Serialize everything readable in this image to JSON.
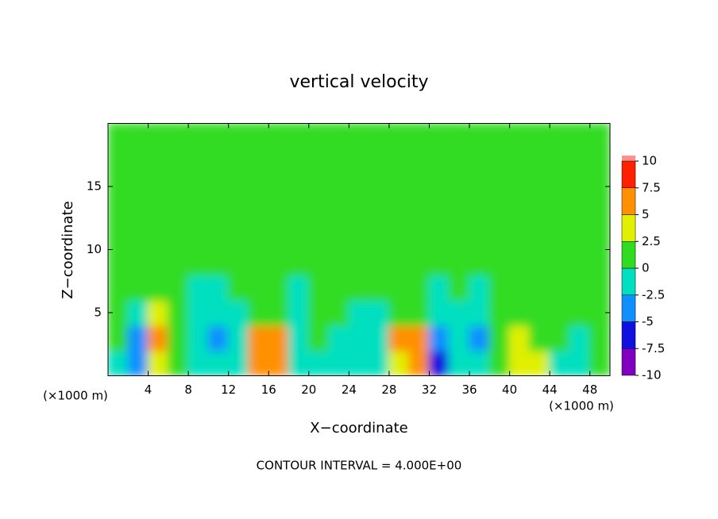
{
  "chart_data": {
    "type": "heatmap",
    "title": "vertical velocity",
    "xlabel": "X−coordinate",
    "ylabel": "Z−coordinate",
    "x_unit": "(×1000 m)",
    "x_unit_right": "(×1000 m)",
    "annotation": "CONTOUR INTERVAL = 4.000E+00",
    "xlim": [
      0,
      50
    ],
    "ylim": [
      0,
      20
    ],
    "xticks": [
      4,
      8,
      12,
      16,
      20,
      24,
      28,
      32,
      36,
      40,
      44,
      48
    ],
    "yticks": [
      5,
      10,
      15
    ],
    "x": [
      1,
      3,
      5,
      7,
      9,
      11,
      13,
      15,
      17,
      19,
      21,
      23,
      25,
      27,
      29,
      31,
      33,
      35,
      37,
      39,
      41,
      43,
      45,
      47,
      49
    ],
    "y": [
      1,
      3,
      5,
      7,
      9,
      11,
      13,
      15,
      17,
      19
    ],
    "values": [
      [
        -2,
        -5,
        3,
        2,
        -1,
        -2,
        -1,
        6,
        7,
        -1,
        -2,
        -1,
        -1.5,
        -2,
        4,
        7,
        -6,
        -2,
        -1.5,
        1,
        3,
        3,
        -1,
        -1.5,
        1
      ],
      [
        0,
        -3,
        5,
        1,
        -1,
        -3,
        -2,
        7,
        6,
        -1,
        0,
        -1,
        -1.5,
        -2,
        5,
        6,
        -5,
        -1,
        -3,
        1,
        4,
        2,
        0.5,
        -1,
        1.5
      ],
      [
        0.5,
        -1,
        4,
        0,
        -1,
        -1.5,
        -1,
        2,
        2,
        -1,
        1,
        0,
        -0.5,
        -1,
        1,
        2,
        -2,
        -0.5,
        -2,
        0,
        1,
        1,
        1,
        0,
        1
      ],
      [
        0.5,
        0,
        1,
        0,
        -1,
        -0.5,
        0,
        1,
        0.5,
        -0.5,
        0,
        0,
        0.5,
        0,
        0.5,
        1,
        -0.5,
        0,
        -0.5,
        0.5,
        0.5,
        0,
        0.5,
        0.5,
        0.5
      ],
      [
        0.5,
        0.5,
        0.5,
        0.5,
        0,
        0.5,
        0.5,
        0.5,
        0.5,
        0,
        0.5,
        0.5,
        0.5,
        0.5,
        0.5,
        0.5,
        0,
        0.5,
        0.5,
        0.5,
        0.5,
        0.5,
        0.5,
        0.5,
        0.5
      ],
      [
        0.5,
        0.5,
        0.5,
        0.5,
        0.5,
        0.5,
        0.5,
        0.5,
        0.5,
        0.5,
        0.5,
        0.5,
        0.5,
        0.5,
        0.5,
        0.5,
        0.5,
        0.5,
        0.5,
        0.5,
        0.5,
        0.5,
        0.5,
        0.5,
        0.5
      ],
      [
        0.5,
        0.5,
        0.5,
        0.5,
        0.5,
        0.5,
        0.5,
        0.5,
        0.5,
        0.5,
        0.5,
        0.5,
        0.5,
        0.5,
        0.5,
        0.5,
        0.5,
        0.5,
        0.5,
        0.5,
        0.5,
        0.5,
        0.5,
        0.5,
        0.5
      ],
      [
        0.5,
        0.5,
        0.5,
        0.5,
        0.5,
        0.5,
        0.5,
        0.5,
        0.5,
        0.5,
        0.5,
        0.5,
        0.5,
        0.5,
        0.5,
        0.5,
        0.5,
        0.5,
        0.5,
        0.5,
        0.5,
        0.5,
        0.5,
        0.5,
        0.5
      ],
      [
        0.5,
        0.5,
        0.5,
        0.5,
        0.5,
        0.5,
        0.5,
        0.5,
        0.5,
        0.5,
        0.5,
        0.5,
        0.5,
        0.5,
        0.5,
        0.5,
        0.5,
        0.5,
        0.5,
        0.5,
        0.5,
        0.5,
        0.5,
        0.5,
        0.5
      ],
      [
        0.5,
        0.5,
        0.5,
        0.5,
        0.5,
        0.5,
        0.5,
        0.5,
        0.5,
        0.5,
        0.5,
        0.5,
        0.5,
        0.5,
        0.5,
        0.5,
        0.5,
        0.5,
        0.5,
        0.5,
        0.5,
        0.5,
        0.5,
        0.5,
        0.5
      ]
    ],
    "colorbar": {
      "ticks": [
        -10,
        -7.5,
        -5,
        -2.5,
        0,
        2.5,
        5,
        7.5,
        10
      ],
      "colors": [
        "#8000c0",
        "#1010e0",
        "#1090ff",
        "#00e0c0",
        "#30dc20",
        "#e0f000",
        "#ff9000",
        "#ff2000"
      ]
    }
  }
}
